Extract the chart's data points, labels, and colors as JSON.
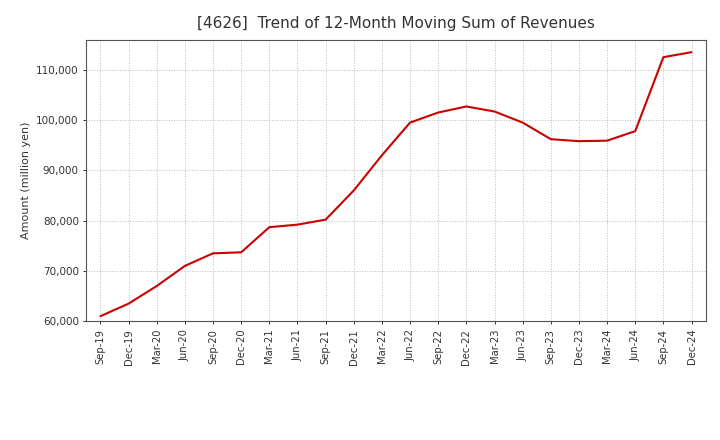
{
  "title": "[4626]  Trend of 12-Month Moving Sum of Revenues",
  "ylabel": "Amount (million yen)",
  "line_color": "#cc0000",
  "background_color": "#ffffff",
  "plot_bg_color": "#ffffff",
  "grid_color": "#bbbbbb",
  "ylim": [
    60000,
    116000
  ],
  "yticks": [
    60000,
    70000,
    80000,
    90000,
    100000,
    110000
  ],
  "title_color": "#333333",
  "x_labels": [
    "Sep-19",
    "Dec-19",
    "Mar-20",
    "Jun-20",
    "Sep-20",
    "Dec-20",
    "Mar-21",
    "Jun-21",
    "Sep-21",
    "Dec-21",
    "Mar-22",
    "Jun-22",
    "Sep-22",
    "Dec-22",
    "Mar-23",
    "Jun-23",
    "Sep-23",
    "Dec-23",
    "Mar-24",
    "Jun-24",
    "Sep-24",
    "Dec-24"
  ],
  "values": [
    61000,
    63500,
    67000,
    71000,
    73500,
    73700,
    78700,
    79200,
    80200,
    86000,
    93000,
    99500,
    101500,
    102700,
    101700,
    99500,
    96200,
    95800,
    95900,
    97800,
    112500,
    113500
  ]
}
